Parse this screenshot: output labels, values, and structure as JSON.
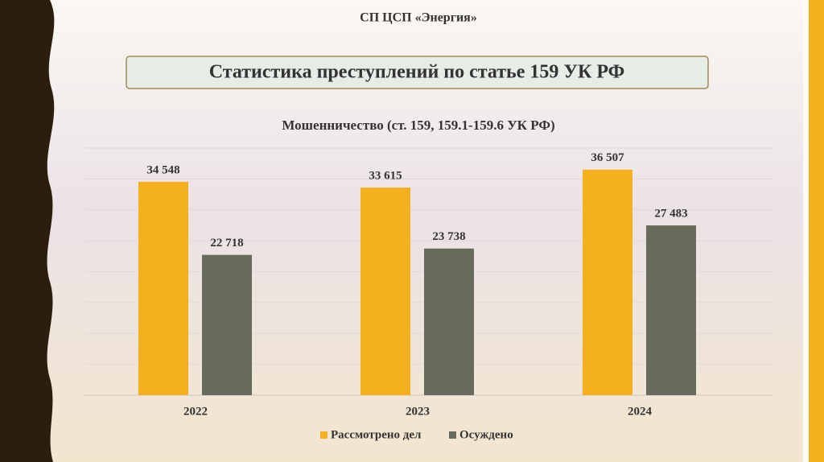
{
  "header": "СП ЦСП «Энергия»",
  "slide_title": "Статистика преступлений по статье 159 УК РФ",
  "chart_data": {
    "type": "bar",
    "title": "Мошенничество (ст. 159, 159.1-159.6 УК РФ)",
    "categories": [
      "2022",
      "2023",
      "2024"
    ],
    "series": [
      {
        "name": "Рассмотрено дел",
        "color": "#f5b01f",
        "values": [
          34548,
          33615,
          36507
        ],
        "value_labels": [
          "34 548",
          "33 615",
          "36 507"
        ]
      },
      {
        "name": "Осуждено",
        "color": "#666b5c",
        "values": [
          22718,
          23738,
          27483
        ],
        "value_labels": [
          "22 718",
          "23 738",
          "27 483"
        ]
      }
    ],
    "ylim": [
      0,
      40000
    ],
    "yticks": [
      0,
      5000,
      10000,
      15000,
      20000,
      25000,
      30000,
      35000,
      40000
    ],
    "grid": true,
    "legend": "bottom"
  }
}
